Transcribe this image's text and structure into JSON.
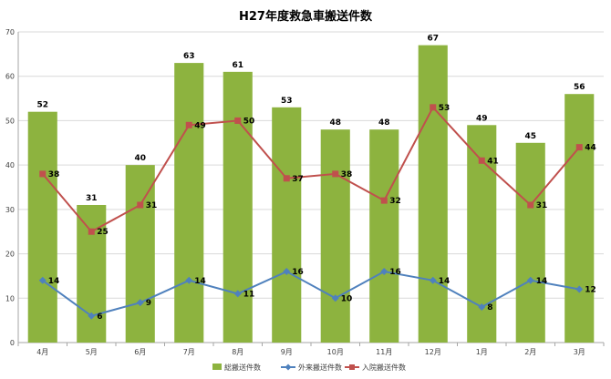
{
  "chart_data": {
    "type": "bar",
    "title": "H27年度救急車搬送件数",
    "xlabel": "",
    "ylabel": "",
    "categories": [
      "4月",
      "5月",
      "6月",
      "7月",
      "8月",
      "9月",
      "10月",
      "11月",
      "12月",
      "1月",
      "2月",
      "3月"
    ],
    "ylim": [
      0,
      70
    ],
    "yticks": [
      0,
      10,
      20,
      30,
      40,
      50,
      60,
      70
    ],
    "grid": true,
    "legend_position": "bottom",
    "series": [
      {
        "name": "総搬送件数",
        "kind": "bar",
        "color": "#8db33f",
        "values": [
          52,
          31,
          40,
          63,
          61,
          53,
          48,
          48,
          67,
          49,
          45,
          56
        ]
      },
      {
        "name": "外来搬送件数",
        "kind": "line",
        "marker": "diamond",
        "color": "#4f81bd",
        "values": [
          14,
          6,
          9,
          14,
          11,
          16,
          10,
          16,
          14,
          8,
          14,
          12
        ]
      },
      {
        "name": "入院搬送件数",
        "kind": "line",
        "marker": "square",
        "color": "#c0504d",
        "values": [
          38,
          25,
          31,
          49,
          50,
          37,
          38,
          32,
          53,
          41,
          31,
          44
        ]
      }
    ]
  }
}
